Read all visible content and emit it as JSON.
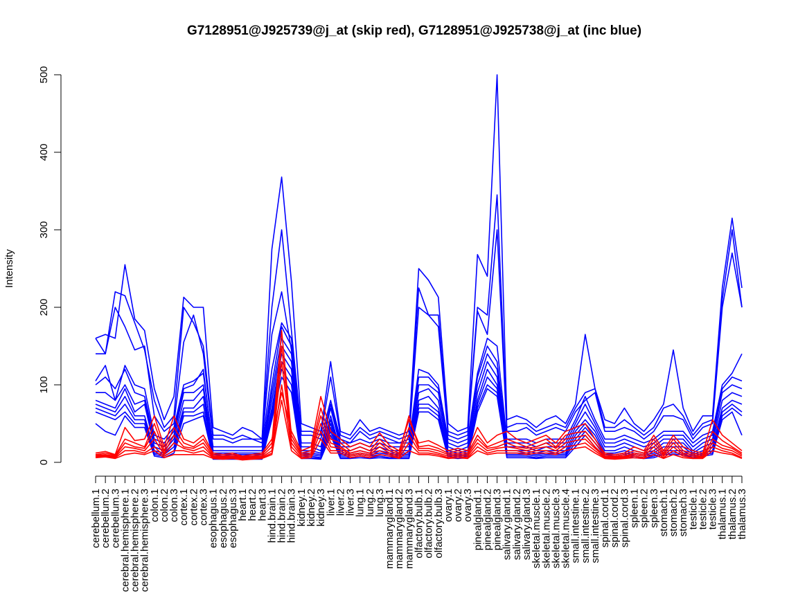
{
  "chart_data": {
    "type": "line",
    "title": "G7128951@J925739@j_at (skip red), G7128951@J925738@j_at (inc blue)",
    "xlabel": "",
    "ylabel": "Intensity",
    "ylim": [
      0,
      500
    ],
    "yticks": [
      0,
      100,
      200,
      300,
      400,
      500
    ],
    "grid": false,
    "colors": {
      "skip": "#ff0000",
      "inc": "#0000ff"
    },
    "categories": [
      "cerebellum.1",
      "cerebellum.2",
      "cerebellum.3",
      "cerebral.hemisphere.1",
      "cerebral.hemisphere.2",
      "cerebral.hemisphere.3",
      "colon.1",
      "colon.2",
      "colon.3",
      "cortex.1",
      "cortex.2",
      "cortex.3",
      "esophagus.1",
      "esophagus.2",
      "esophagus.3",
      "heart.1",
      "heart.2",
      "heart.3",
      "hind.brain.1",
      "hind.brain.2",
      "hind.brain.3",
      "kidney.1",
      "kidney.2",
      "kidney.3",
      "liver.1",
      "liver.2",
      "liver.3",
      "lung.1",
      "lung.2",
      "lung.3",
      "mammarygland.1",
      "mammarygland.2",
      "mammarygland.3",
      "olfactory.bulb.1",
      "olfactory.bulb.2",
      "olfactory.bulb.3",
      "ovary.1",
      "ovary.2",
      "ovary.3",
      "pinealgland.1",
      "pinealgland.2",
      "pinealgland.3",
      "salivary.gland.1",
      "salivary.gland.2",
      "salivary.gland.3",
      "skeletal.muscle.1",
      "skeletal.muscle.2",
      "skeletal.muscle.3",
      "skeletal.muscle.4",
      "small.intestine.1",
      "small.intestine.2",
      "small.intestine.3",
      "spinal.cord.1",
      "spinal.cord.2",
      "spinal.cord.3",
      "spleen.1",
      "spleen.2",
      "spleen.3",
      "stomach.1",
      "stomach.2",
      "stomach.3",
      "testicle.1",
      "testicle.2",
      "testicle.3",
      "thalamus.1",
      "thalamus.2",
      "thalamus.3"
    ],
    "series": [
      {
        "group": "inc",
        "values": [
          160,
          165,
          160,
          255,
          185,
          170,
          95,
          55,
          85,
          213,
          200,
          200,
          45,
          40,
          35,
          45,
          40,
          30,
          275,
          368,
          233,
          50,
          45,
          40,
          130,
          40,
          35,
          55,
          40,
          45,
          40,
          35,
          40,
          250,
          235,
          213,
          50,
          40,
          45,
          268,
          240,
          500,
          55,
          60,
          55,
          45,
          55,
          60,
          50,
          75,
          165,
          95,
          55,
          50,
          70,
          50,
          40,
          55,
          75,
          145,
          70,
          40,
          60,
          60,
          225,
          315,
          225
        ]
      },
      {
        "group": "inc",
        "values": [
          160,
          140,
          220,
          215,
          180,
          145,
          80,
          45,
          60,
          200,
          180,
          150,
          35,
          35,
          30,
          35,
          30,
          30,
          200,
          300,
          170,
          40,
          40,
          35,
          110,
          35,
          30,
          45,
          35,
          40,
          35,
          30,
          35,
          225,
          190,
          190,
          40,
          35,
          40,
          200,
          190,
          345,
          45,
          50,
          50,
          40,
          45,
          50,
          45,
          70,
          90,
          95,
          45,
          45,
          55,
          45,
          35,
          45,
          70,
          75,
          60,
          35,
          50,
          55,
          210,
          300,
          200
        ]
      },
      {
        "group": "inc",
        "values": [
          140,
          140,
          200,
          175,
          145,
          150,
          60,
          40,
          50,
          155,
          190,
          140,
          30,
          30,
          25,
          30,
          30,
          25,
          165,
          220,
          145,
          35,
          35,
          30,
          80,
          30,
          25,
          40,
          30,
          35,
          30,
          25,
          30,
          200,
          190,
          175,
          35,
          30,
          35,
          195,
          165,
          300,
          40,
          40,
          45,
          35,
          40,
          45,
          40,
          65,
          80,
          90,
          40,
          40,
          45,
          40,
          30,
          40,
          60,
          60,
          55,
          30,
          45,
          50,
          200,
          270,
          200
        ]
      },
      {
        "group": "inc",
        "values": [
          105,
          125,
          80,
          125,
          100,
          95,
          35,
          30,
          45,
          100,
          105,
          115,
          20,
          20,
          20,
          20,
          20,
          20,
          120,
          180,
          160,
          25,
          25,
          20,
          75,
          25,
          25,
          30,
          25,
          30,
          25,
          25,
          25,
          120,
          115,
          100,
          30,
          25,
          30,
          115,
          160,
          150,
          30,
          30,
          30,
          25,
          30,
          30,
          30,
          55,
          85,
          55,
          30,
          30,
          35,
          30,
          25,
          30,
          40,
          40,
          40,
          25,
          35,
          40,
          100,
          115,
          140
        ]
      },
      {
        "group": "inc",
        "values": [
          100,
          110,
          95,
          120,
          90,
          85,
          30,
          25,
          40,
          95,
          100,
          120,
          15,
          15,
          15,
          15,
          15,
          15,
          100,
          175,
          150,
          20,
          20,
          15,
          70,
          20,
          20,
          25,
          20,
          25,
          20,
          20,
          20,
          110,
          110,
          95,
          25,
          20,
          25,
          110,
          150,
          130,
          25,
          25,
          25,
          20,
          25,
          25,
          25,
          50,
          75,
          50,
          25,
          25,
          30,
          25,
          20,
          25,
          35,
          35,
          35,
          20,
          30,
          35,
          95,
          110,
          105
        ]
      },
      {
        "group": "inc",
        "values": [
          90,
          90,
          80,
          100,
          75,
          80,
          25,
          20,
          35,
          90,
          90,
          100,
          12,
          12,
          12,
          12,
          12,
          12,
          90,
          160,
          140,
          15,
          15,
          12,
          60,
          15,
          15,
          20,
          15,
          20,
          15,
          15,
          15,
          100,
          100,
          90,
          20,
          15,
          20,
          100,
          140,
          120,
          20,
          20,
          20,
          15,
          20,
          20,
          20,
          45,
          65,
          45,
          20,
          20,
          25,
          20,
          15,
          20,
          30,
          30,
          30,
          15,
          25,
          30,
          90,
          100,
          95
        ]
      },
      {
        "group": "inc",
        "values": [
          80,
          75,
          70,
          95,
          65,
          75,
          20,
          15,
          30,
          80,
          80,
          95,
          10,
          10,
          10,
          10,
          10,
          10,
          80,
          150,
          130,
          12,
          12,
          10,
          55,
          12,
          12,
          15,
          12,
          15,
          12,
          12,
          12,
          90,
          95,
          80,
          15,
          12,
          15,
          90,
          130,
          110,
          15,
          15,
          15,
          12,
          15,
          15,
          15,
          40,
          55,
          40,
          15,
          15,
          20,
          15,
          12,
          15,
          25,
          25,
          25,
          12,
          20,
          25,
          80,
          90,
          85
        ]
      },
      {
        "group": "inc",
        "values": [
          75,
          70,
          65,
          85,
          60,
          60,
          15,
          12,
          25,
          70,
          70,
          85,
          8,
          8,
          8,
          8,
          8,
          8,
          70,
          140,
          120,
          10,
          10,
          8,
          50,
          10,
          10,
          12,
          10,
          12,
          10,
          10,
          10,
          80,
          85,
          70,
          12,
          10,
          12,
          80,
          120,
          100,
          12,
          12,
          12,
          10,
          12,
          12,
          12,
          35,
          50,
          35,
          12,
          12,
          15,
          12,
          10,
          12,
          20,
          20,
          20,
          10,
          15,
          20,
          70,
          80,
          75
        ]
      },
      {
        "group": "inc",
        "values": [
          70,
          65,
          60,
          75,
          55,
          55,
          12,
          10,
          20,
          65,
          65,
          75,
          6,
          6,
          6,
          6,
          6,
          6,
          65,
          130,
          110,
          8,
          8,
          6,
          45,
          8,
          8,
          10,
          8,
          10,
          8,
          8,
          8,
          75,
          75,
          65,
          10,
          8,
          10,
          75,
          110,
          95,
          10,
          10,
          10,
          8,
          10,
          10,
          10,
          30,
          45,
          30,
          10,
          10,
          12,
          10,
          8,
          10,
          15,
          15,
          15,
          8,
          12,
          15,
          65,
          75,
          65
        ]
      },
      {
        "group": "inc",
        "values": [
          65,
          60,
          55,
          65,
          50,
          50,
          10,
          8,
          15,
          60,
          60,
          65,
          5,
          5,
          5,
          5,
          5,
          5,
          60,
          120,
          100,
          6,
          6,
          5,
          40,
          6,
          6,
          8,
          6,
          8,
          6,
          6,
          6,
          70,
          70,
          60,
          8,
          6,
          8,
          70,
          100,
          90,
          8,
          8,
          8,
          6,
          8,
          8,
          8,
          25,
          40,
          25,
          8,
          8,
          10,
          8,
          6,
          8,
          12,
          12,
          12,
          6,
          10,
          12,
          60,
          70,
          60
        ]
      },
      {
        "group": "inc",
        "values": [
          50,
          40,
          35,
          60,
          45,
          45,
          8,
          6,
          12,
          50,
          55,
          60,
          4,
          4,
          4,
          4,
          4,
          4,
          55,
          110,
          90,
          5,
          5,
          4,
          35,
          5,
          5,
          6,
          5,
          6,
          5,
          5,
          5,
          65,
          65,
          55,
          6,
          5,
          6,
          65,
          95,
          85,
          6,
          6,
          6,
          5,
          6,
          6,
          6,
          20,
          35,
          20,
          6,
          6,
          8,
          6,
          5,
          6,
          10,
          10,
          10,
          5,
          8,
          10,
          55,
          65,
          35
        ]
      },
      {
        "group": "skip",
        "values": [
          12,
          14,
          10,
          45,
          28,
          30,
          60,
          20,
          60,
          30,
          25,
          35,
          12,
          10,
          12,
          8,
          10,
          12,
          30,
          90,
          40,
          15,
          20,
          85,
          40,
          30,
          20,
          25,
          20,
          38,
          22,
          15,
          55,
          25,
          28,
          22,
          15,
          18,
          15,
          45,
          25,
          35,
          40,
          30,
          25,
          30,
          35,
          25,
          40,
          45,
          50,
          30,
          12,
          10,
          12,
          20,
          15,
          35,
          15,
          35,
          20,
          15,
          12,
          55,
          35,
          25,
          15
        ]
      },
      {
        "group": "skip",
        "values": [
          10,
          12,
          9,
          30,
          25,
          20,
          50,
          15,
          45,
          25,
          20,
          30,
          10,
          8,
          10,
          7,
          8,
          10,
          25,
          170,
          35,
          12,
          15,
          70,
          30,
          25,
          15,
          20,
          15,
          30,
          18,
          12,
          60,
          20,
          22,
          18,
          12,
          15,
          12,
          35,
          20,
          25,
          30,
          25,
          20,
          25,
          30,
          20,
          35,
          38,
          40,
          25,
          10,
          8,
          10,
          15,
          12,
          30,
          12,
          30,
          15,
          12,
          10,
          40,
          28,
          20,
          12
        ]
      },
      {
        "group": "skip",
        "values": [
          9,
          10,
          8,
          25,
          20,
          18,
          40,
          12,
          35,
          20,
          18,
          25,
          8,
          7,
          8,
          6,
          7,
          8,
          20,
          150,
          30,
          10,
          12,
          60,
          25,
          20,
          12,
          15,
          12,
          25,
          15,
          10,
          45,
          18,
          18,
          15,
          10,
          12,
          10,
          30,
          18,
          20,
          25,
          20,
          18,
          20,
          25,
          18,
          30,
          32,
          35,
          20,
          8,
          7,
          8,
          12,
          10,
          25,
          10,
          25,
          12,
          10,
          8,
          30,
          22,
          18,
          10
        ]
      },
      {
        "group": "skip",
        "values": [
          8,
          9,
          7,
          20,
          18,
          15,
          30,
          10,
          25,
          18,
          15,
          20,
          7,
          6,
          7,
          5,
          6,
          7,
          15,
          130,
          25,
          8,
          10,
          50,
          20,
          18,
          10,
          12,
          10,
          20,
          12,
          8,
          35,
          15,
          15,
          12,
          8,
          10,
          8,
          25,
          15,
          18,
          20,
          18,
          15,
          18,
          20,
          15,
          25,
          28,
          30,
          18,
          7,
          6,
          7,
          10,
          8,
          20,
          8,
          20,
          10,
          8,
          7,
          25,
          18,
          15,
          8
        ]
      },
      {
        "group": "skip",
        "values": [
          7,
          8,
          6,
          15,
          15,
          12,
          20,
          8,
          15,
          15,
          12,
          15,
          6,
          5,
          6,
          4,
          5,
          6,
          12,
          100,
          20,
          6,
          8,
          40,
          15,
          15,
          8,
          10,
          8,
          15,
          10,
          6,
          25,
          12,
          12,
          10,
          6,
          8,
          6,
          20,
          12,
          15,
          15,
          15,
          12,
          15,
          15,
          12,
          20,
          22,
          25,
          15,
          6,
          5,
          6,
          8,
          6,
          15,
          6,
          15,
          8,
          6,
          6,
          20,
          15,
          12,
          6
        ]
      },
      {
        "group": "skip",
        "values": [
          6,
          7,
          5,
          10,
          12,
          10,
          15,
          6,
          10,
          10,
          10,
          10,
          5,
          4,
          5,
          3,
          4,
          5,
          10,
          80,
          15,
          5,
          6,
          30,
          12,
          12,
          6,
          8,
          6,
          10,
          8,
          5,
          15,
          10,
          10,
          8,
          5,
          6,
          5,
          15,
          10,
          12,
          12,
          12,
          10,
          12,
          12,
          10,
          15,
          18,
          20,
          12,
          5,
          4,
          5,
          6,
          5,
          10,
          5,
          10,
          6,
          5,
          5,
          15,
          12,
          10,
          5
        ]
      }
    ]
  }
}
